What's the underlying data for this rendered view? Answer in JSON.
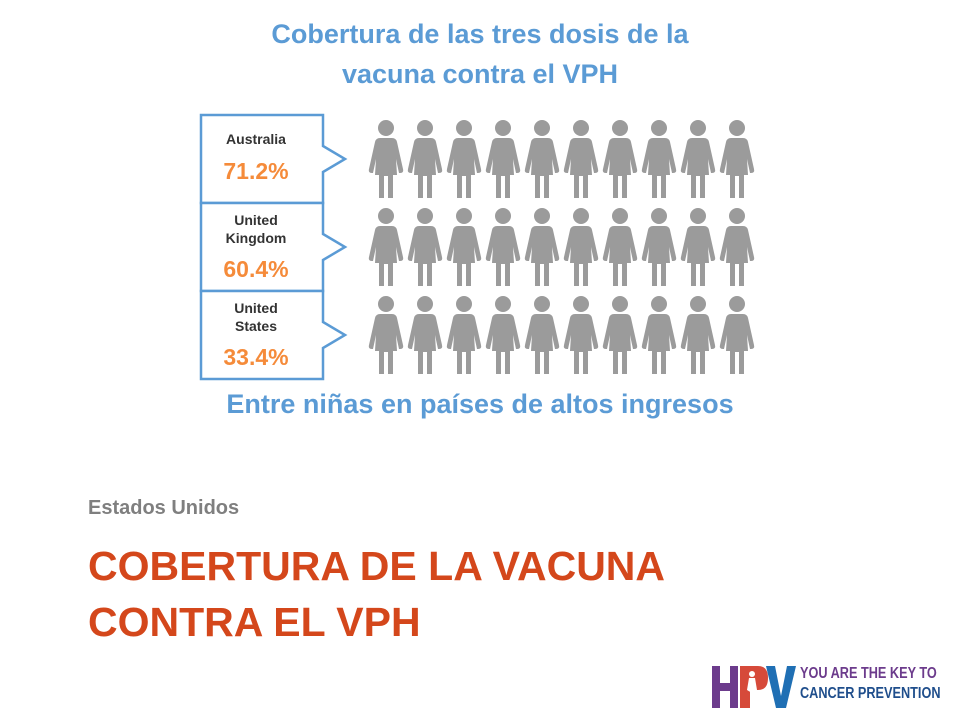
{
  "title": {
    "line1": "Cobertura de las tres dosis de la",
    "line2": "vacuna contra el VPH"
  },
  "subtitle": "Entre niñas en países de altos ingresos",
  "section": {
    "subtitle": "Estados Unidos",
    "title_line1": "COBERTURA DE LA VACUNA",
    "title_line2": "CONTRA EL VPH"
  },
  "logo": {
    "letters": "HPV",
    "line1": "YOU ARE THE KEY TO",
    "line2": "CANCER PREVENTION"
  },
  "colors": {
    "title": "#5b9bd5",
    "filled": "#f58b3a",
    "empty": "#9b9b9b",
    "box_border": "#5b9bd5",
    "section_title": "#d4471b",
    "section_subtitle": "#7f7f7f"
  },
  "chart_data": {
    "type": "pictograph",
    "icon": "girl-figure-icon",
    "icons_per_row": 10,
    "rows": [
      {
        "label_lines": [
          "Australia"
        ],
        "value_label": "71.2%",
        "value": 71.2
      },
      {
        "label_lines": [
          "United",
          "Kingdom"
        ],
        "value_label": "60.4%",
        "value": 60.4
      },
      {
        "label_lines": [
          "United",
          "States"
        ],
        "value_label": "33.4%",
        "value": 33.4
      }
    ]
  }
}
